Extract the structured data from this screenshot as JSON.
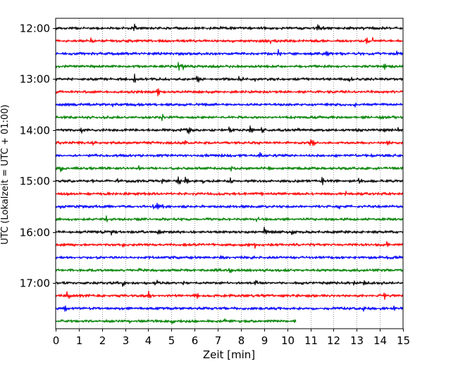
{
  "chart_data": {
    "type": "line",
    "title": "",
    "xlabel": "Zeit  [min]",
    "ylabel": "UTC (Lokalzeit = UTC + 01:00)",
    "xlim": [
      0,
      15
    ],
    "x_ticks": [
      "0",
      "1",
      "2",
      "3",
      "4",
      "5",
      "6",
      "7",
      "8",
      "9",
      "10",
      "11",
      "12",
      "13",
      "14",
      "15"
    ],
    "y_ticks": [
      "12:00",
      "13:00",
      "14:00",
      "15:00",
      "16:00",
      "17:00"
    ],
    "grid": "vertical dotted",
    "trace_interval_min": 15,
    "colors": [
      "#000000",
      "#ff0000",
      "#0000ff",
      "#008000"
    ],
    "traces": [
      {
        "start": "12:00",
        "end_min": 15,
        "events": [
          3.4,
          6.5,
          7.0,
          11.3,
          11.5,
          12.6,
          13.3,
          14.1
        ]
      },
      {
        "start": "12:15",
        "end_min": 15,
        "events": [
          1.5,
          2.2,
          9.3,
          13.0,
          13.4,
          13.7
        ]
      },
      {
        "start": "12:30",
        "end_min": 15,
        "events": [
          9.6,
          11.7,
          12.4,
          14.7
        ]
      },
      {
        "start": "12:45",
        "end_min": 15,
        "events": [
          5.2,
          5.3,
          5.5,
          14.2
        ]
      },
      {
        "start": "13:00",
        "end_min": 15,
        "events": [
          3.0,
          3.4,
          6.1,
          7.9,
          8.1,
          8.6,
          12.6,
          12.7
        ]
      },
      {
        "start": "13:15",
        "end_min": 15,
        "events": [
          4.4,
          10.5,
          12.6
        ]
      },
      {
        "start": "13:30",
        "end_min": 15,
        "events": [
          2.5,
          12.9
        ]
      },
      {
        "start": "13:45",
        "end_min": 15,
        "events": [
          2.6,
          4.6,
          6.3,
          14.0
        ]
      },
      {
        "start": "14:00",
        "end_min": 15,
        "events": [
          1.1,
          2.0,
          5.7,
          7.5,
          8.4,
          8.9,
          9.6,
          10.5,
          14.2,
          14.8
        ]
      },
      {
        "start": "14:15",
        "end_min": 15,
        "events": [
          1.6,
          5.6,
          6.8,
          11.0,
          11.1,
          14.3
        ]
      },
      {
        "start": "14:30",
        "end_min": 15,
        "events": [
          6.5,
          8.8,
          9.5
        ]
      },
      {
        "start": "14:45",
        "end_min": 15,
        "events": [
          0.2,
          3.6,
          7.5,
          8.2,
          9.2,
          10.0
        ]
      },
      {
        "start": "15:00",
        "end_min": 15,
        "events": [
          1.6,
          2.6,
          4.6,
          5.3,
          5.6,
          6.3,
          7.5,
          11.5,
          13.1
        ]
      },
      {
        "start": "15:15",
        "end_min": 15,
        "events": [
          0.5,
          8.9,
          12.5
        ]
      },
      {
        "start": "15:30",
        "end_min": 15,
        "events": [
          0.2,
          1.0,
          4.2,
          4.4,
          4.6,
          5.6,
          12.2
        ]
      },
      {
        "start": "15:45",
        "end_min": 15,
        "events": [
          2.2,
          5.0,
          8.7,
          14.0
        ]
      },
      {
        "start": "16:00",
        "end_min": 15,
        "events": [
          2.4,
          4.4,
          9.0,
          10.2
        ]
      },
      {
        "start": "16:15",
        "end_min": 15,
        "events": [
          2.9,
          5.5,
          6.3,
          8.3,
          8.6,
          14.3
        ]
      },
      {
        "start": "16:30",
        "end_min": 15,
        "events": [
          7.0
        ]
      },
      {
        "start": "16:45",
        "end_min": 15,
        "events": [
          3.6,
          7.5,
          14.9
        ]
      },
      {
        "start": "17:00",
        "end_min": 15,
        "events": [
          2.9,
          4.3,
          5.5,
          8.6,
          9.3,
          12.9,
          13.3,
          14.1
        ]
      },
      {
        "start": "17:15",
        "end_min": 15,
        "events": [
          0.5,
          4.0,
          6.1,
          7.0,
          8.9,
          14.2
        ]
      },
      {
        "start": "17:30",
        "end_min": 15,
        "events": [
          0.4,
          9.7,
          13.3,
          14.0,
          14.6
        ]
      },
      {
        "start": "17:45",
        "end_min": 10.4,
        "events": [
          0.2,
          3.2,
          5.0,
          5.6,
          7.3
        ]
      }
    ]
  }
}
